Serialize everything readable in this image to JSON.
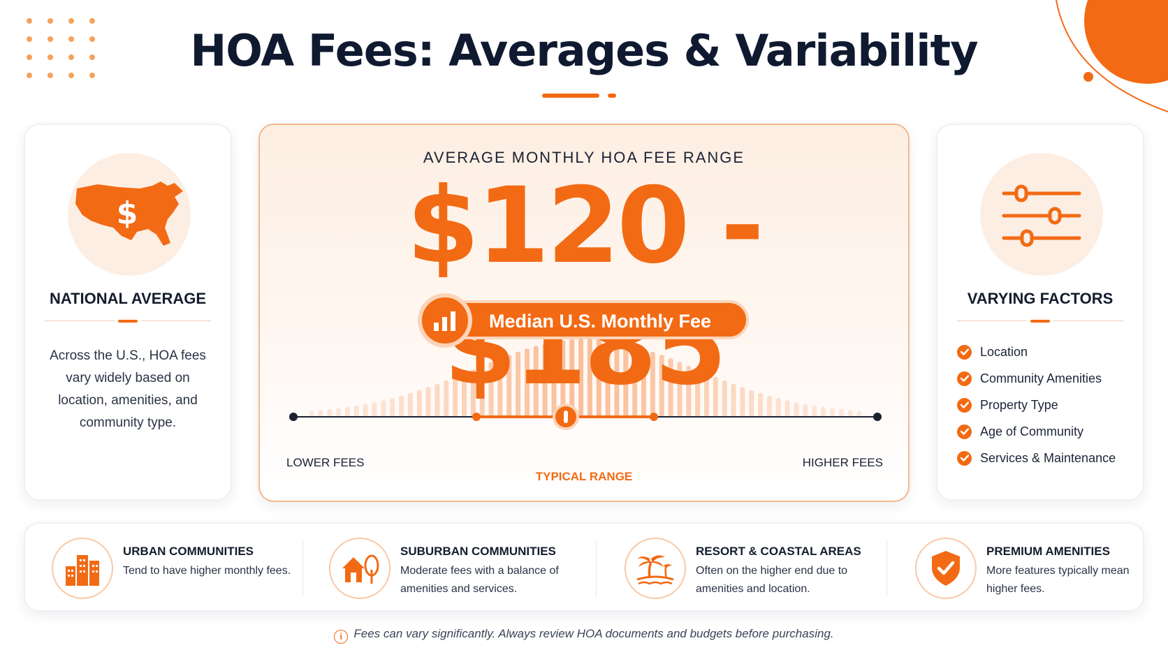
{
  "title": "HOA Fees: Averages & Variability",
  "left_card": {
    "icon": "us-map-dollar-icon",
    "heading": "NATIONAL AVERAGE",
    "text": "Across the U.S., HOA fees vary widely based on location, amenities, and community type."
  },
  "center_card": {
    "label": "AVERAGE MONTHLY HOA FEE RANGE",
    "range": "$120 - $185",
    "median_label": "Median U.S. Monthly Fee",
    "median_icon": "bar-chart-icon",
    "scale": {
      "low": "LOWER FEES",
      "high": "HIGHER FEES",
      "typical": "TYPICAL RANGE"
    }
  },
  "right_card": {
    "icon": "sliders-icon",
    "heading": "VARYING FACTORS",
    "factors": [
      "Location",
      "Community Amenities",
      "Property Type",
      "Age of Community",
      "Services & Maintenance"
    ]
  },
  "categories": [
    {
      "icon": "city-buildings-icon",
      "title": "URBAN COMMUNITIES",
      "desc": "Tend to have higher monthly fees."
    },
    {
      "icon": "house-tree-icon",
      "title": "SUBURBAN COMMUNITIES",
      "desc": "Moderate fees with a balance of amenities and services."
    },
    {
      "icon": "palm-tree-icon",
      "title": "RESORT & COASTAL AREAS",
      "desc": "Often on the higher end due to amenities and location."
    },
    {
      "icon": "shield-check-icon",
      "title": "PREMIUM AMENITIES",
      "desc": "More features typically mean higher fees."
    }
  ],
  "footnote": "Fees can vary significantly. Always review HOA documents and budgets before purchasing.",
  "colors": {
    "accent": "#f26a14",
    "accent_light": "#fdeee4",
    "text_dark": "#0f1a30"
  }
}
